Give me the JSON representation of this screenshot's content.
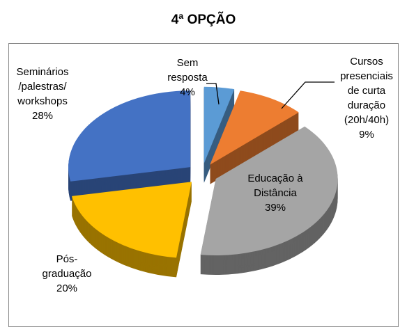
{
  "chart_data": {
    "type": "pie",
    "title": "4ª OPÇÃO",
    "categories": [
      "Sem resposta",
      "Cursos presenciais de curta duração (20h/40h)",
      "Educação à Distância",
      "Pós-graduação",
      "Seminários /palestras/ workshops"
    ],
    "values": [
      4,
      9,
      39,
      20,
      28
    ],
    "value_labels": [
      "4%",
      "9%",
      "39%",
      "20%",
      "28%"
    ],
    "colors": [
      "#5b9bd5",
      "#ed7d31",
      "#a5a5a5",
      "#ffc000",
      "#4472c4"
    ],
    "three_d": true,
    "exploded": true
  }
}
